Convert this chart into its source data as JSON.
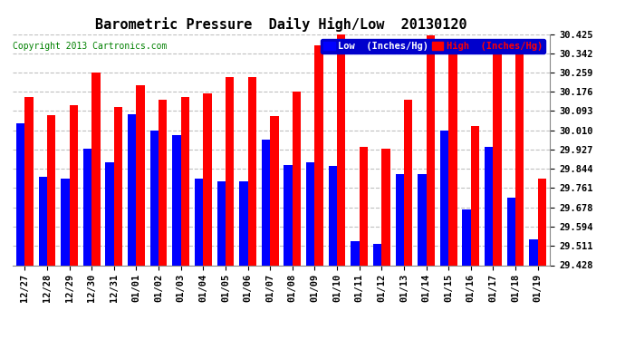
{
  "title": "Barometric Pressure  Daily High/Low  20130120",
  "copyright": "Copyright 2013 Cartronics.com",
  "legend_low": "Low  (Inches/Hg)",
  "legend_high": "High  (Inches/Hg)",
  "dates": [
    "12/27",
    "12/28",
    "12/29",
    "12/30",
    "12/31",
    "01/01",
    "01/02",
    "01/03",
    "01/04",
    "01/05",
    "01/06",
    "01/07",
    "01/08",
    "01/09",
    "01/10",
    "01/11",
    "01/12",
    "01/13",
    "01/14",
    "01/15",
    "01/16",
    "01/17",
    "01/18",
    "01/19"
  ],
  "low": [
    30.04,
    29.81,
    29.8,
    29.93,
    29.87,
    30.08,
    30.01,
    29.99,
    29.8,
    29.79,
    29.79,
    29.97,
    29.86,
    29.87,
    29.855,
    29.53,
    29.52,
    29.82,
    29.82,
    30.01,
    29.67,
    29.94,
    29.72,
    29.54
  ],
  "high": [
    30.155,
    30.075,
    30.12,
    30.26,
    30.11,
    30.205,
    30.14,
    30.155,
    30.17,
    30.24,
    30.24,
    30.07,
    30.175,
    30.375,
    30.43,
    29.94,
    29.93,
    30.14,
    30.42,
    30.365,
    30.03,
    30.365,
    30.355,
    29.8
  ],
  "ymin": 29.428,
  "ymax": 30.425,
  "yticks": [
    29.428,
    29.511,
    29.594,
    29.678,
    29.761,
    29.844,
    29.927,
    30.01,
    30.093,
    30.176,
    30.259,
    30.342,
    30.425
  ],
  "bar_color_low": "#0000ff",
  "bar_color_high": "#ff0000",
  "bg_color": "#ffffff",
  "plot_bg_color": "#ffffff",
  "grid_color": "#c0c0c0",
  "title_fontsize": 11,
  "copyright_fontsize": 7,
  "tick_fontsize": 7.5,
  "legend_fontsize": 7.5
}
